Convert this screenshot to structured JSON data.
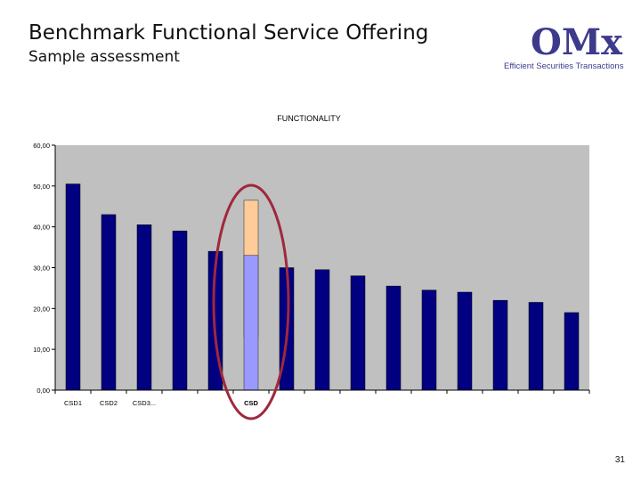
{
  "slide": {
    "title": "Benchmark Functional Service Offering",
    "subtitle": "Sample assessment",
    "page_number": "31"
  },
  "logo": {
    "mark": "OMx",
    "tagline": "Efficient Securities Transactions",
    "color": "#3d3a8c"
  },
  "colors": {
    "plot_background": "#c0c0c0",
    "bar": "#000080",
    "highlight_bar": "#9999ff",
    "highlight_range": "#ffcc99",
    "ellipse": "#a0283c"
  },
  "chart_data": {
    "type": "bar",
    "title": "FUNCTIONALITY",
    "xlabel": "",
    "ylabel": "",
    "ylim": [
      0,
      60
    ],
    "yticks": [
      "0,00",
      "10,00",
      "20,00",
      "30,00",
      "40,00",
      "50,00",
      "60,00"
    ],
    "categories": [
      "CSD1",
      "CSD2",
      "CSD3...",
      "",
      "",
      "CSD",
      "",
      "",
      "",
      "",
      "",
      "",
      "",
      "",
      ""
    ],
    "values": [
      50.5,
      43.0,
      40.5,
      39.0,
      34.0,
      33.0,
      30.0,
      29.5,
      28.0,
      25.5,
      24.5,
      24.0,
      22.0,
      21.5,
      19.0
    ],
    "highlight": {
      "index": 5,
      "label": "CSD",
      "range_low": 13.0,
      "range_high": 46.5
    },
    "grid": false,
    "legend": "none"
  }
}
